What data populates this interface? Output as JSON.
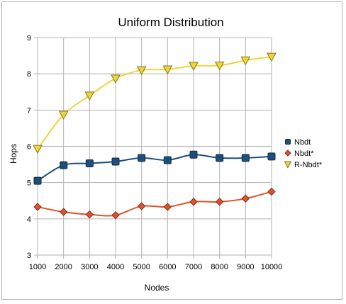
{
  "chart_data": {
    "type": "line",
    "title": "Uniform Distribution",
    "xlabel": "Nodes",
    "ylabel": "Hops",
    "x": [
      1000,
      2000,
      3000,
      4000,
      5000,
      6000,
      7000,
      8000,
      9000,
      10000
    ],
    "xlim": [
      1000,
      10000
    ],
    "ylim": [
      3,
      9
    ],
    "yticks": [
      3,
      4,
      5,
      6,
      7,
      8,
      9
    ],
    "grid": true,
    "legend": "right",
    "series": [
      {
        "name": "Nbdt",
        "marker": "square",
        "color": "#1c4f7a",
        "values": [
          5.05,
          5.48,
          5.53,
          5.58,
          5.68,
          5.62,
          5.77,
          5.68,
          5.68,
          5.72
        ]
      },
      {
        "name": "Nbdt*",
        "marker": "diamond",
        "color": "#e0522a",
        "values": [
          4.33,
          4.19,
          4.12,
          4.1,
          4.35,
          4.33,
          4.47,
          4.47,
          4.56,
          4.75
        ]
      },
      {
        "name": "R-Nbdt*",
        "marker": "triangle-down",
        "color": "#f0d43a",
        "values": [
          5.93,
          6.87,
          7.4,
          7.87,
          8.1,
          8.12,
          8.22,
          8.23,
          8.37,
          8.47
        ]
      }
    ]
  }
}
